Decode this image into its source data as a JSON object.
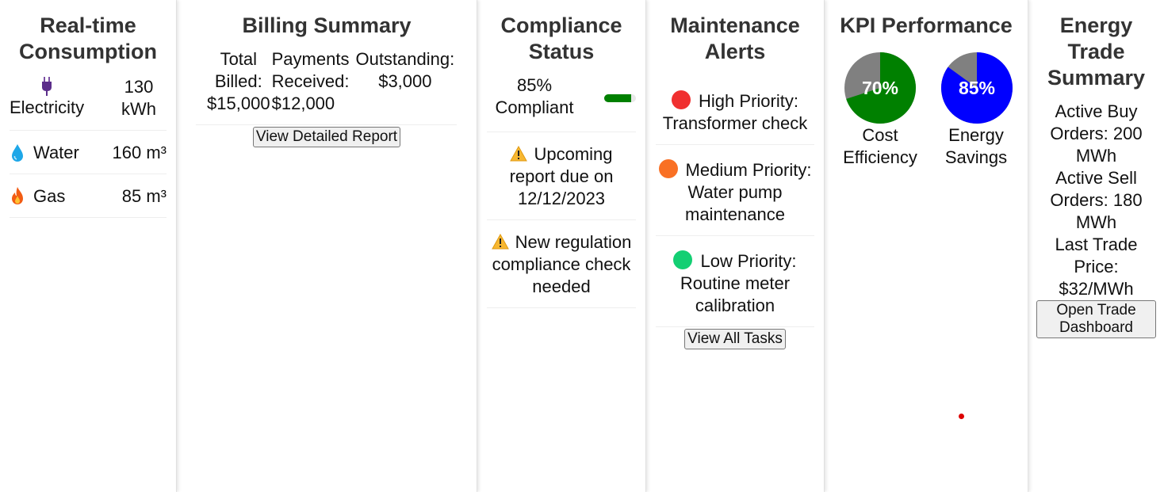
{
  "consumption": {
    "title": "Real-time Consumption",
    "items": [
      {
        "name": "Electricity",
        "value": "130 kWh",
        "icon": "electric-plug-icon"
      },
      {
        "name": "Water",
        "value": "160 m³",
        "icon": "water-drop-icon"
      },
      {
        "name": "Gas",
        "value": "85 m³",
        "icon": "fire-icon"
      }
    ]
  },
  "billing": {
    "title": "Billing Summary",
    "total_billed_label": "Total Billed:",
    "total_billed_value": "$15,000",
    "payments_label": "Payments Received:",
    "payments_value": "$12,000",
    "outstanding_label": "Outstanding:",
    "outstanding_value": "$3,000",
    "button": "View Detailed Report"
  },
  "compliance": {
    "title": "Compliance Status",
    "percent_text": "85% Compliant",
    "percent": 85,
    "bar_color": "#008000",
    "items": [
      {
        "text": "Upcoming report due on 12/12/2023",
        "icon": "warning-icon"
      },
      {
        "text": "New regulation compliance check needed",
        "icon": "warning-icon"
      }
    ]
  },
  "maintenance": {
    "title": "Maintenance Alerts",
    "alerts": [
      {
        "text": "High Priority: Transformer check",
        "color": "#f03030"
      },
      {
        "text": "Medium Priority: Water pump maintenance",
        "color": "#f97024"
      },
      {
        "text": "Low Priority: Routine meter calibration",
        "color": "#13cf73"
      }
    ],
    "button": "View All Tasks"
  },
  "kpi": {
    "title": "KPI Performance",
    "items": [
      {
        "label": "Cost Efficiency",
        "percent_text": "70%",
        "percent": 70,
        "color": "#008000"
      },
      {
        "label": "Energy Savings",
        "percent_text": "85%",
        "percent": 85,
        "color": "#0000ff"
      }
    ],
    "remainder_color": "#808080"
  },
  "trade": {
    "title": "Energy Trade Summary",
    "buy": "Active Buy Orders: 200 MWh",
    "sell": "Active Sell Orders: 180 MWh",
    "last_price": "Last Trade Price: $32/MWh",
    "button": "Open Trade Dashboard"
  }
}
